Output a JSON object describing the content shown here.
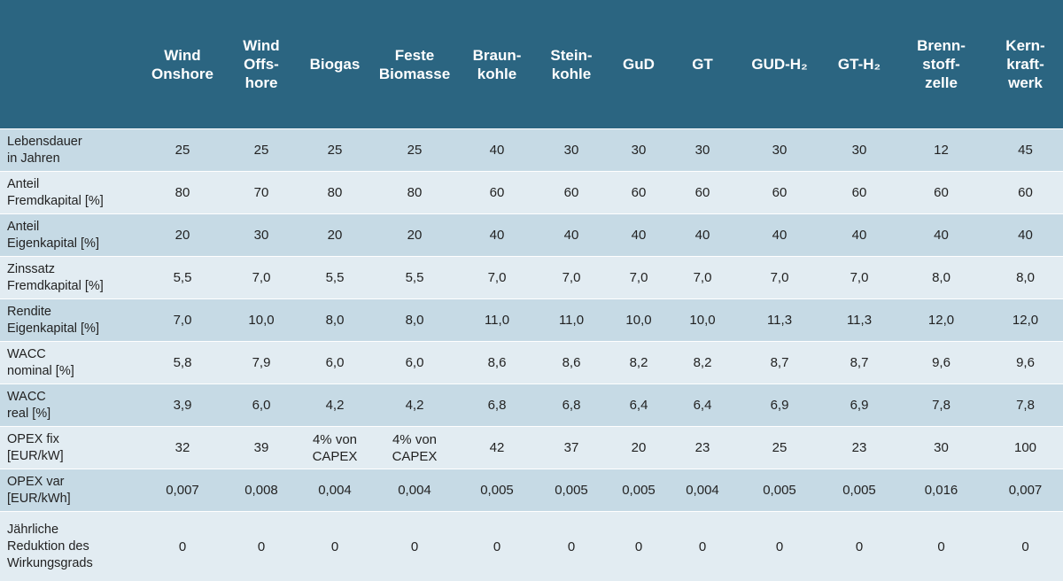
{
  "table": {
    "header": [
      [],
      [
        "Wind",
        "Onshore"
      ],
      [
        "Wind",
        "Offs-",
        "hore"
      ],
      [
        "Biogas"
      ],
      [
        "Feste",
        "Biomasse"
      ],
      [
        "Braun-",
        "kohle"
      ],
      [
        "Stein-",
        "kohle"
      ],
      [
        "GuD"
      ],
      [
        "GT"
      ],
      [
        "GUD-H₂"
      ],
      [
        "GT-H₂"
      ],
      [
        "Brenn-",
        "stoff-",
        "zelle"
      ],
      [
        "Kern-",
        "kraft-",
        "werk"
      ]
    ],
    "rows": [
      [
        [
          "Lebensdauer",
          "in Jahren"
        ],
        "25",
        "25",
        "25",
        "25",
        "40",
        "30",
        "30",
        "30",
        "30",
        "30",
        "12",
        "45"
      ],
      [
        [
          "Anteil",
          "Fremdkapital [%]"
        ],
        "80",
        "70",
        "80",
        "80",
        "60",
        "60",
        "60",
        "60",
        "60",
        "60",
        "60",
        "60"
      ],
      [
        [
          "Anteil",
          "Eigenkapital [%]"
        ],
        "20",
        "30",
        "20",
        "20",
        "40",
        "40",
        "40",
        "40",
        "40",
        "40",
        "40",
        "40"
      ],
      [
        [
          "Zinssatz",
          "Fremdkapital [%]"
        ],
        "5,5",
        "7,0",
        "5,5",
        "5,5",
        "7,0",
        "7,0",
        "7,0",
        "7,0",
        "7,0",
        "7,0",
        "8,0",
        "8,0"
      ],
      [
        [
          "Rendite",
          "Eigenkapital [%]"
        ],
        "7,0",
        "10,0",
        "8,0",
        "8,0",
        "11,0",
        "11,0",
        "10,0",
        "10,0",
        "11,3",
        "11,3",
        "12,0",
        "12,0"
      ],
      [
        [
          "WACC",
          "nominal [%]"
        ],
        "5,8",
        "7,9",
        "6,0",
        "6,0",
        "8,6",
        "8,6",
        "8,2",
        "8,2",
        "8,7",
        "8,7",
        "9,6",
        "9,6"
      ],
      [
        [
          "WACC",
          "real [%]"
        ],
        "3,9",
        "6,0",
        "4,2",
        "4,2",
        "6,8",
        "6,8",
        "6,4",
        "6,4",
        "6,9",
        "6,9",
        "7,8",
        "7,8"
      ],
      [
        [
          "OPEX fix",
          "[EUR/kW]"
        ],
        "32",
        "39",
        [
          "4% von",
          "CAPEX"
        ],
        [
          "4% von",
          "CAPEX"
        ],
        "42",
        "37",
        "20",
        "23",
        "25",
        "23",
        "30",
        "100"
      ],
      [
        [
          "OPEX var",
          "[EUR/kWh]"
        ],
        "0,007",
        "0,008",
        "0,004",
        "0,004",
        "0,005",
        "0,005",
        "0,005",
        "0,004",
        "0,005",
        "0,005",
        "0,016",
        "0,007"
      ],
      [
        [
          "Jährliche",
          "Reduktion des",
          "Wirkungsgrads"
        ],
        "0",
        "0",
        "0",
        "0",
        "0",
        "0",
        "0",
        "0",
        "0",
        "0",
        "0",
        "0"
      ]
    ]
  }
}
